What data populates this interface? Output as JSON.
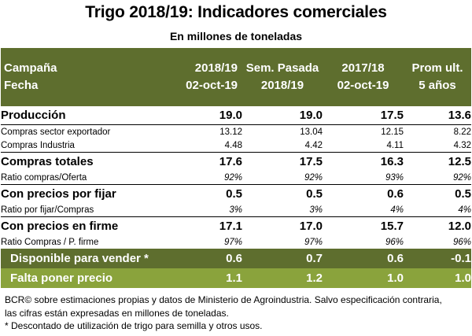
{
  "title": "Trigo 2018/19: Indicadores comerciales",
  "subtitle": "En millones de toneladas",
  "header": {
    "label_line1": "Campaña",
    "label_line2": "Fecha",
    "columns": [
      {
        "line1": "2018/19",
        "line2": "02-oct-19"
      },
      {
        "line1": "Sem. Pasada",
        "line2": "2018/19"
      },
      {
        "line1": "2017/18",
        "line2": "02-oct-19"
      },
      {
        "line1": "Prom ult.",
        "line2": "5 años"
      }
    ]
  },
  "rows": [
    {
      "label": "Producción",
      "values": [
        "19.0",
        "19.0",
        "17.5",
        "13.6"
      ]
    },
    {
      "label": "Compras sector exportador",
      "values": [
        "13.12",
        "13.04",
        "12.15",
        "8.22"
      ]
    },
    {
      "label": "Compras Industria",
      "values": [
        "4.48",
        "4.42",
        "4.11",
        "4.32"
      ]
    },
    {
      "label": "Compras totales",
      "values": [
        "17.6",
        "17.5",
        "16.3",
        "12.5"
      ]
    },
    {
      "label": "Ratio compras/Oferta",
      "values": [
        "92%",
        "92%",
        "93%",
        "92%"
      ]
    },
    {
      "label": "Con precios por fijar",
      "values": [
        "0.5",
        "0.5",
        "0.6",
        "0.5"
      ]
    },
    {
      "label": "Ratio por fijar/Compras",
      "values": [
        "3%",
        "3%",
        "4%",
        "4%"
      ]
    },
    {
      "label": "Con precios en firme",
      "values": [
        "17.1",
        "17.0",
        "15.7",
        "12.0"
      ]
    },
    {
      "label": "Ratio Compras / P. firme",
      "values": [
        "97%",
        "97%",
        "96%",
        "96%"
      ]
    },
    {
      "label": "Disponible para vender *",
      "values": [
        "0.6",
        "0.7",
        "0.6",
        "-0.1"
      ]
    },
    {
      "label": "Falta poner precio",
      "values": [
        "1.1",
        "1.2",
        "1.0",
        "1.0"
      ]
    }
  ],
  "footer": {
    "line1": "BCR© sobre estimaciones propias y datos de Ministerio de Agroindustria. Salvo especificación contraria,",
    "line2": "las cifras están expresadas en millones de toneladas.",
    "line3": "* Descontado de utilización de trigo para semilla y otros usos."
  },
  "colors": {
    "header_band": "#5e6e2e",
    "light_band": "#8aa33c"
  }
}
